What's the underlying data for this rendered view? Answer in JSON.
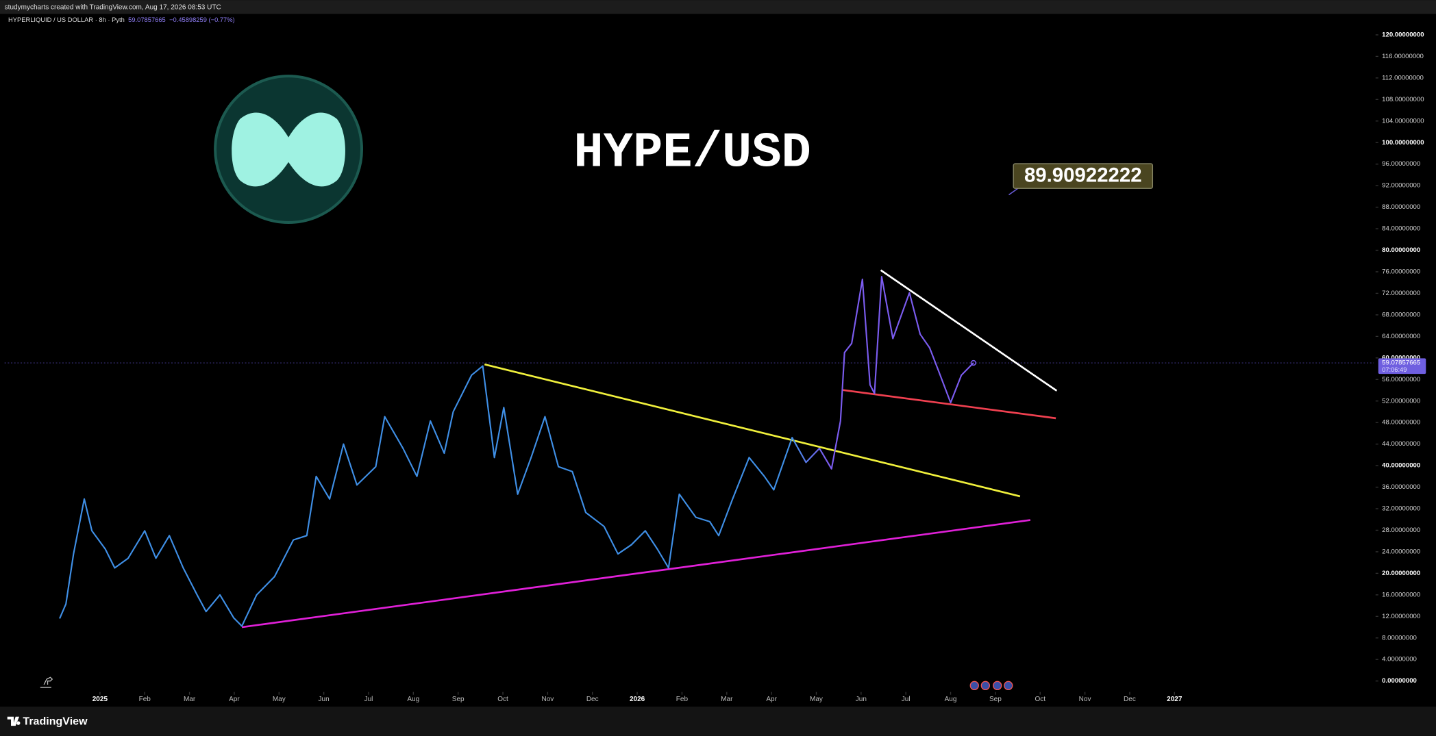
{
  "credit": "studymycharts created with TradingView.com, Aug 17, 2026 08:53 UTC",
  "symbol": "HYPERLIQUID / US DOLLAR · 8h · Pyth",
  "last_price": "59.07857665",
  "change": "−0.45898259 (−0.77%)",
  "price_tag": {
    "price": "59.07857665",
    "countdown": "07:06:49"
  },
  "brand": "TradingView",
  "chart_data": {
    "type": "line",
    "title": "HYPE/USD",
    "x": [
      -0.9,
      -0.76,
      -0.59,
      -0.35,
      -0.18,
      0.12,
      0.33,
      0.63,
      1.0,
      1.25,
      1.55,
      1.86,
      2.17,
      2.37,
      2.68,
      2.99,
      3.17,
      3.5,
      3.9,
      4.32,
      4.62,
      4.83,
      5.13,
      5.44,
      5.74,
      6.16,
      6.36,
      6.77,
      7.08,
      7.38,
      7.69,
      7.89,
      8.3,
      8.55,
      8.81,
      9.02,
      9.33,
      9.63,
      9.94,
      10.24,
      10.55,
      10.85,
      11.26,
      11.57,
      11.87,
      12.18,
      12.45,
      12.7,
      12.94,
      13.31,
      13.62,
      13.82,
      14.13,
      14.5,
      14.84,
      15.05,
      15.46,
      15.77,
      16.07,
      16.34,
      16.54,
      16.63,
      16.79,
      17.03,
      17.2,
      17.3,
      17.46,
      17.71,
      18.08,
      18.32,
      18.53,
      18.73,
      19.0,
      19.24,
      19.51
    ],
    "series": [
      {
        "gradient": [
          "#3f8fe6",
          "#7b5cf0"
        ],
        "values": [
          11.6,
          14.3,
          23.6,
          33.8,
          27.9,
          24.5,
          21,
          22.8,
          27.9,
          22.8,
          27,
          21,
          16,
          12.9,
          16,
          11.7,
          10.2,
          16,
          19.4,
          26.2,
          27,
          38,
          33.8,
          44,
          36.4,
          39.8,
          49.1,
          43.2,
          38,
          48.3,
          42.3,
          50,
          56.8,
          58.5,
          41.5,
          50.8,
          34.7,
          41.5,
          49.1,
          39.8,
          38.9,
          31.3,
          28.7,
          23.6,
          25.3,
          27.9,
          24.5,
          21,
          34.7,
          30.4,
          29.6,
          27,
          33.8,
          41.5,
          38,
          35.5,
          45.2,
          40.6,
          43.2,
          39.4,
          48.3,
          61,
          62.7,
          74.6,
          55,
          53.4,
          75.1,
          63.6,
          72.1,
          64.4,
          61.9,
          57.6,
          51.7,
          56.8,
          59.08
        ]
      }
    ],
    "xlim": [
      -2.13,
      28.45
    ],
    "xticks": [
      {
        "value": 0,
        "label": "2025"
      },
      {
        "value": 1,
        "label": "Feb"
      },
      {
        "value": 2,
        "label": "Mar"
      },
      {
        "value": 3,
        "label": "Apr"
      },
      {
        "value": 4,
        "label": "May"
      },
      {
        "value": 5,
        "label": "Jun"
      },
      {
        "value": 6,
        "label": "Jul"
      },
      {
        "value": 7,
        "label": "Aug"
      },
      {
        "value": 8,
        "label": "Sep"
      },
      {
        "value": 9,
        "label": "Oct"
      },
      {
        "value": 10,
        "label": "Nov"
      },
      {
        "value": 11,
        "label": "Dec"
      },
      {
        "value": 12,
        "label": "2026"
      },
      {
        "value": 13,
        "label": "Feb"
      },
      {
        "value": 14,
        "label": "Mar"
      },
      {
        "value": 15,
        "label": "Apr"
      },
      {
        "value": 16,
        "label": "May"
      },
      {
        "value": 17,
        "label": "Jun"
      },
      {
        "value": 18,
        "label": "Jul"
      },
      {
        "value": 19,
        "label": "Aug"
      },
      {
        "value": 20,
        "label": "Sep"
      },
      {
        "value": 21,
        "label": "Oct"
      },
      {
        "value": 22,
        "label": "Nov"
      },
      {
        "value": 23,
        "label": "Dec"
      },
      {
        "value": 24,
        "label": "2027"
      }
    ],
    "ylim": [
      0,
      120
    ],
    "yticks": [
      {
        "value": 0,
        "label": "0.00000000"
      },
      {
        "value": 4,
        "label": "4.00000000"
      },
      {
        "value": 8,
        "label": "8.00000000"
      },
      {
        "value": 12,
        "label": "12.00000000"
      },
      {
        "value": 16,
        "label": "16.00000000"
      },
      {
        "value": 20,
        "label": "20.00000000"
      },
      {
        "value": 24,
        "label": "24.00000000"
      },
      {
        "value": 28,
        "label": "28.00000000"
      },
      {
        "value": 32,
        "label": "32.00000000"
      },
      {
        "value": 36,
        "label": "36.00000000"
      },
      {
        "value": 40,
        "label": "40.00000000"
      },
      {
        "value": 44,
        "label": "44.00000000"
      },
      {
        "value": 48,
        "label": "48.00000000"
      },
      {
        "value": 52,
        "label": "52.00000000"
      },
      {
        "value": 56,
        "label": "56.00000000"
      },
      {
        "value": 60,
        "label": "60.00000000"
      },
      {
        "value": 64,
        "label": "64.00000000"
      },
      {
        "value": 68,
        "label": "68.00000000"
      },
      {
        "value": 72,
        "label": "72.00000000"
      },
      {
        "value": 76,
        "label": "76.00000000"
      },
      {
        "value": 80,
        "label": "80.00000000"
      },
      {
        "value": 84,
        "label": "84.00000000"
      },
      {
        "value": 88,
        "label": "88.00000000"
      },
      {
        "value": 92,
        "label": "92.00000000"
      },
      {
        "value": 96,
        "label": "96.00000000"
      },
      {
        "value": 100,
        "label": "100.00000000"
      },
      {
        "value": 104,
        "label": "104.00000000"
      },
      {
        "value": 108,
        "label": "108.00000000"
      },
      {
        "value": 112,
        "label": "112.00000000"
      },
      {
        "value": 116,
        "label": "116.00000000"
      },
      {
        "value": 120,
        "label": "120.00000000"
      }
    ],
    "current_price": 59.07857665,
    "trendlines": [
      {
        "color": "#f0f03c",
        "x": [
          8.59,
          20.55
        ],
        "y": [
          58.8,
          34.3
        ]
      },
      {
        "color": "#e020d8",
        "x": [
          3.17,
          20.78
        ],
        "y": [
          10.0,
          29.9
        ]
      },
      {
        "color": "#f04050",
        "x": [
          16.58,
          21.35
        ],
        "y": [
          54.05,
          48.8
        ]
      },
      {
        "color": "#ffffff",
        "x": [
          17.44,
          21.37
        ],
        "y": [
          76.3,
          53.9
        ]
      }
    ],
    "price_label": {
      "value": 89.90922222,
      "x": 20.3,
      "y": 90.3
    }
  }
}
